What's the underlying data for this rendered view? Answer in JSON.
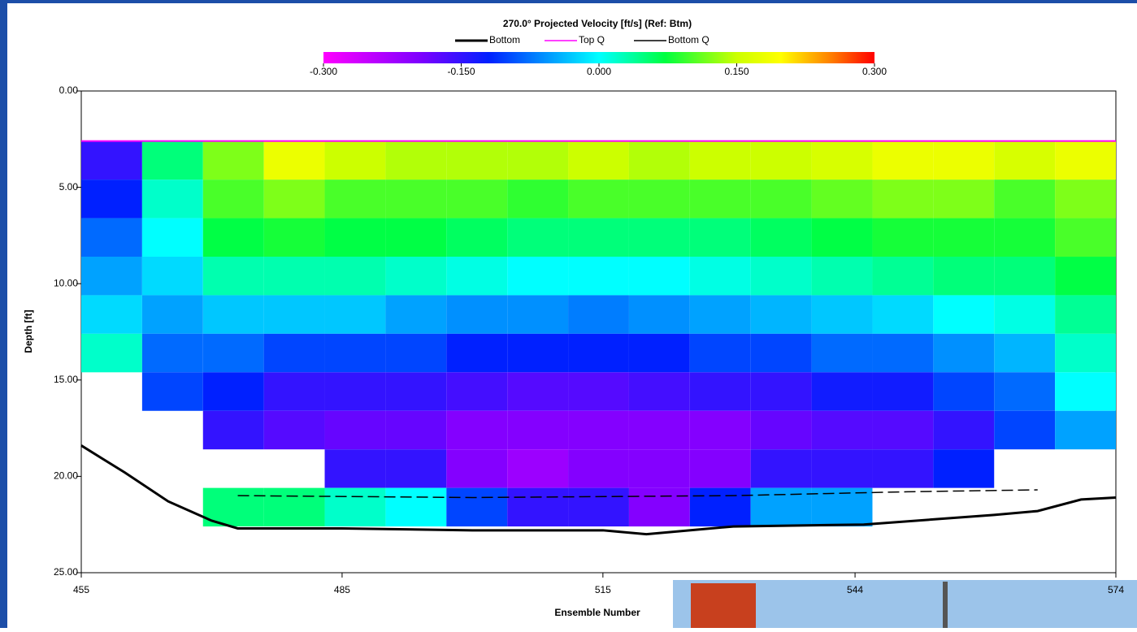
{
  "chart_data": {
    "type": "heatmap",
    "title": "270.0° Projected Velocity [ft/s] (Ref: Btm)",
    "x_label": "Ensemble Number",
    "y_label": "Depth [ft]",
    "xlim": [
      455,
      574
    ],
    "ylim": [
      25,
      0
    ],
    "xticks": [
      455,
      485,
      515,
      544,
      574
    ],
    "yticks": [
      {
        "value": 0,
        "label": "0.00"
      },
      {
        "value": 5,
        "label": "5.00"
      },
      {
        "value": 10,
        "label": "10.00"
      },
      {
        "value": 15,
        "label": "15.00"
      },
      {
        "value": 20,
        "label": "20.00"
      },
      {
        "value": 25,
        "label": "25.00"
      }
    ],
    "colorbar": {
      "lim": [
        -0.3,
        0.3
      ],
      "ticks": [
        {
          "value": -0.3,
          "label": "-0.300"
        },
        {
          "value": -0.15,
          "label": "-0.150"
        },
        {
          "value": 0,
          "label": "0.000"
        },
        {
          "value": 0.15,
          "label": "0.150"
        },
        {
          "value": 0.3,
          "label": "0.300"
        }
      ]
    },
    "x_bins": [
      455,
      462,
      469,
      476,
      483,
      490,
      497,
      504,
      511,
      518,
      525,
      532,
      539,
      546,
      553,
      560,
      567,
      574
    ],
    "depth_bins": [
      2.6,
      4.6,
      6.6,
      8.6,
      10.6,
      12.6,
      14.6,
      16.6,
      18.6,
      20.6,
      22.6
    ],
    "values": [
      [
        -0.15,
        -0.12,
        -0.08,
        -0.05,
        -0.02,
        0.02,
        null,
        null,
        null,
        null
      ],
      [
        0.05,
        0.02,
        0.0,
        -0.02,
        -0.05,
        -0.08,
        -0.1,
        null,
        null,
        null
      ],
      [
        0.12,
        0.1,
        0.07,
        0.03,
        -0.03,
        -0.08,
        -0.12,
        -0.15,
        null,
        0.05
      ],
      [
        0.18,
        0.12,
        0.08,
        0.03,
        -0.03,
        -0.1,
        -0.15,
        -0.17,
        null,
        0.05
      ],
      [
        0.15,
        0.1,
        0.07,
        0.03,
        -0.03,
        -0.1,
        -0.15,
        -0.18,
        -0.15,
        0.02
      ],
      [
        0.14,
        0.1,
        0.07,
        0.02,
        -0.05,
        -0.1,
        -0.15,
        -0.18,
        -0.15,
        0.0
      ],
      [
        0.14,
        0.1,
        0.06,
        0.01,
        -0.06,
        -0.12,
        -0.16,
        -0.2,
        -0.2,
        -0.1
      ],
      [
        0.14,
        0.09,
        0.05,
        0.0,
        -0.06,
        -0.12,
        -0.17,
        -0.2,
        -0.22,
        -0.15
      ],
      [
        0.15,
        0.1,
        0.05,
        0.0,
        -0.07,
        -0.12,
        -0.17,
        -0.2,
        -0.2,
        -0.15
      ],
      [
        0.14,
        0.1,
        0.05,
        0.0,
        -0.06,
        -0.12,
        -0.16,
        -0.2,
        -0.2,
        -0.2
      ],
      [
        0.15,
        0.1,
        0.05,
        0.01,
        -0.05,
        -0.1,
        -0.15,
        -0.2,
        -0.2,
        -0.12
      ],
      [
        0.15,
        0.1,
        0.06,
        0.02,
        -0.04,
        -0.1,
        -0.15,
        -0.18,
        -0.15,
        -0.05
      ],
      [
        0.16,
        0.11,
        0.07,
        0.03,
        -0.03,
        -0.08,
        -0.13,
        -0.17,
        -0.15,
        -0.05
      ],
      [
        0.18,
        0.12,
        0.08,
        0.04,
        -0.02,
        -0.08,
        -0.13,
        -0.17,
        -0.15,
        null
      ],
      [
        0.18,
        0.12,
        0.08,
        0.05,
        0.0,
        -0.06,
        -0.1,
        -0.15,
        -0.12,
        null
      ],
      [
        0.16,
        0.1,
        0.08,
        0.05,
        0.01,
        -0.04,
        -0.08,
        -0.1,
        null,
        null
      ],
      [
        0.18,
        0.12,
        0.1,
        0.07,
        0.04,
        0.02,
        0.0,
        -0.05,
        null,
        null
      ]
    ],
    "series": [
      {
        "name": "Bottom",
        "color": "#000000",
        "x": [
          455,
          460,
          465,
          470,
          473,
          485,
          500,
          515,
          520,
          530,
          545,
          560,
          565,
          570,
          574
        ],
        "y": [
          18.4,
          19.8,
          21.3,
          22.3,
          22.7,
          22.7,
          22.8,
          22.8,
          23.0,
          22.6,
          22.5,
          22.0,
          21.8,
          21.2,
          21.1
        ]
      },
      {
        "name": "Top Q",
        "color": "#ff00ff",
        "x": [
          455,
          574
        ],
        "y": [
          2.6,
          2.6
        ]
      },
      {
        "name": "Bottom Q",
        "color": "#000000",
        "x": [
          473,
          500,
          530,
          550,
          565
        ],
        "y": [
          21.0,
          21.1,
          21.0,
          20.8,
          20.7
        ]
      }
    ]
  }
}
